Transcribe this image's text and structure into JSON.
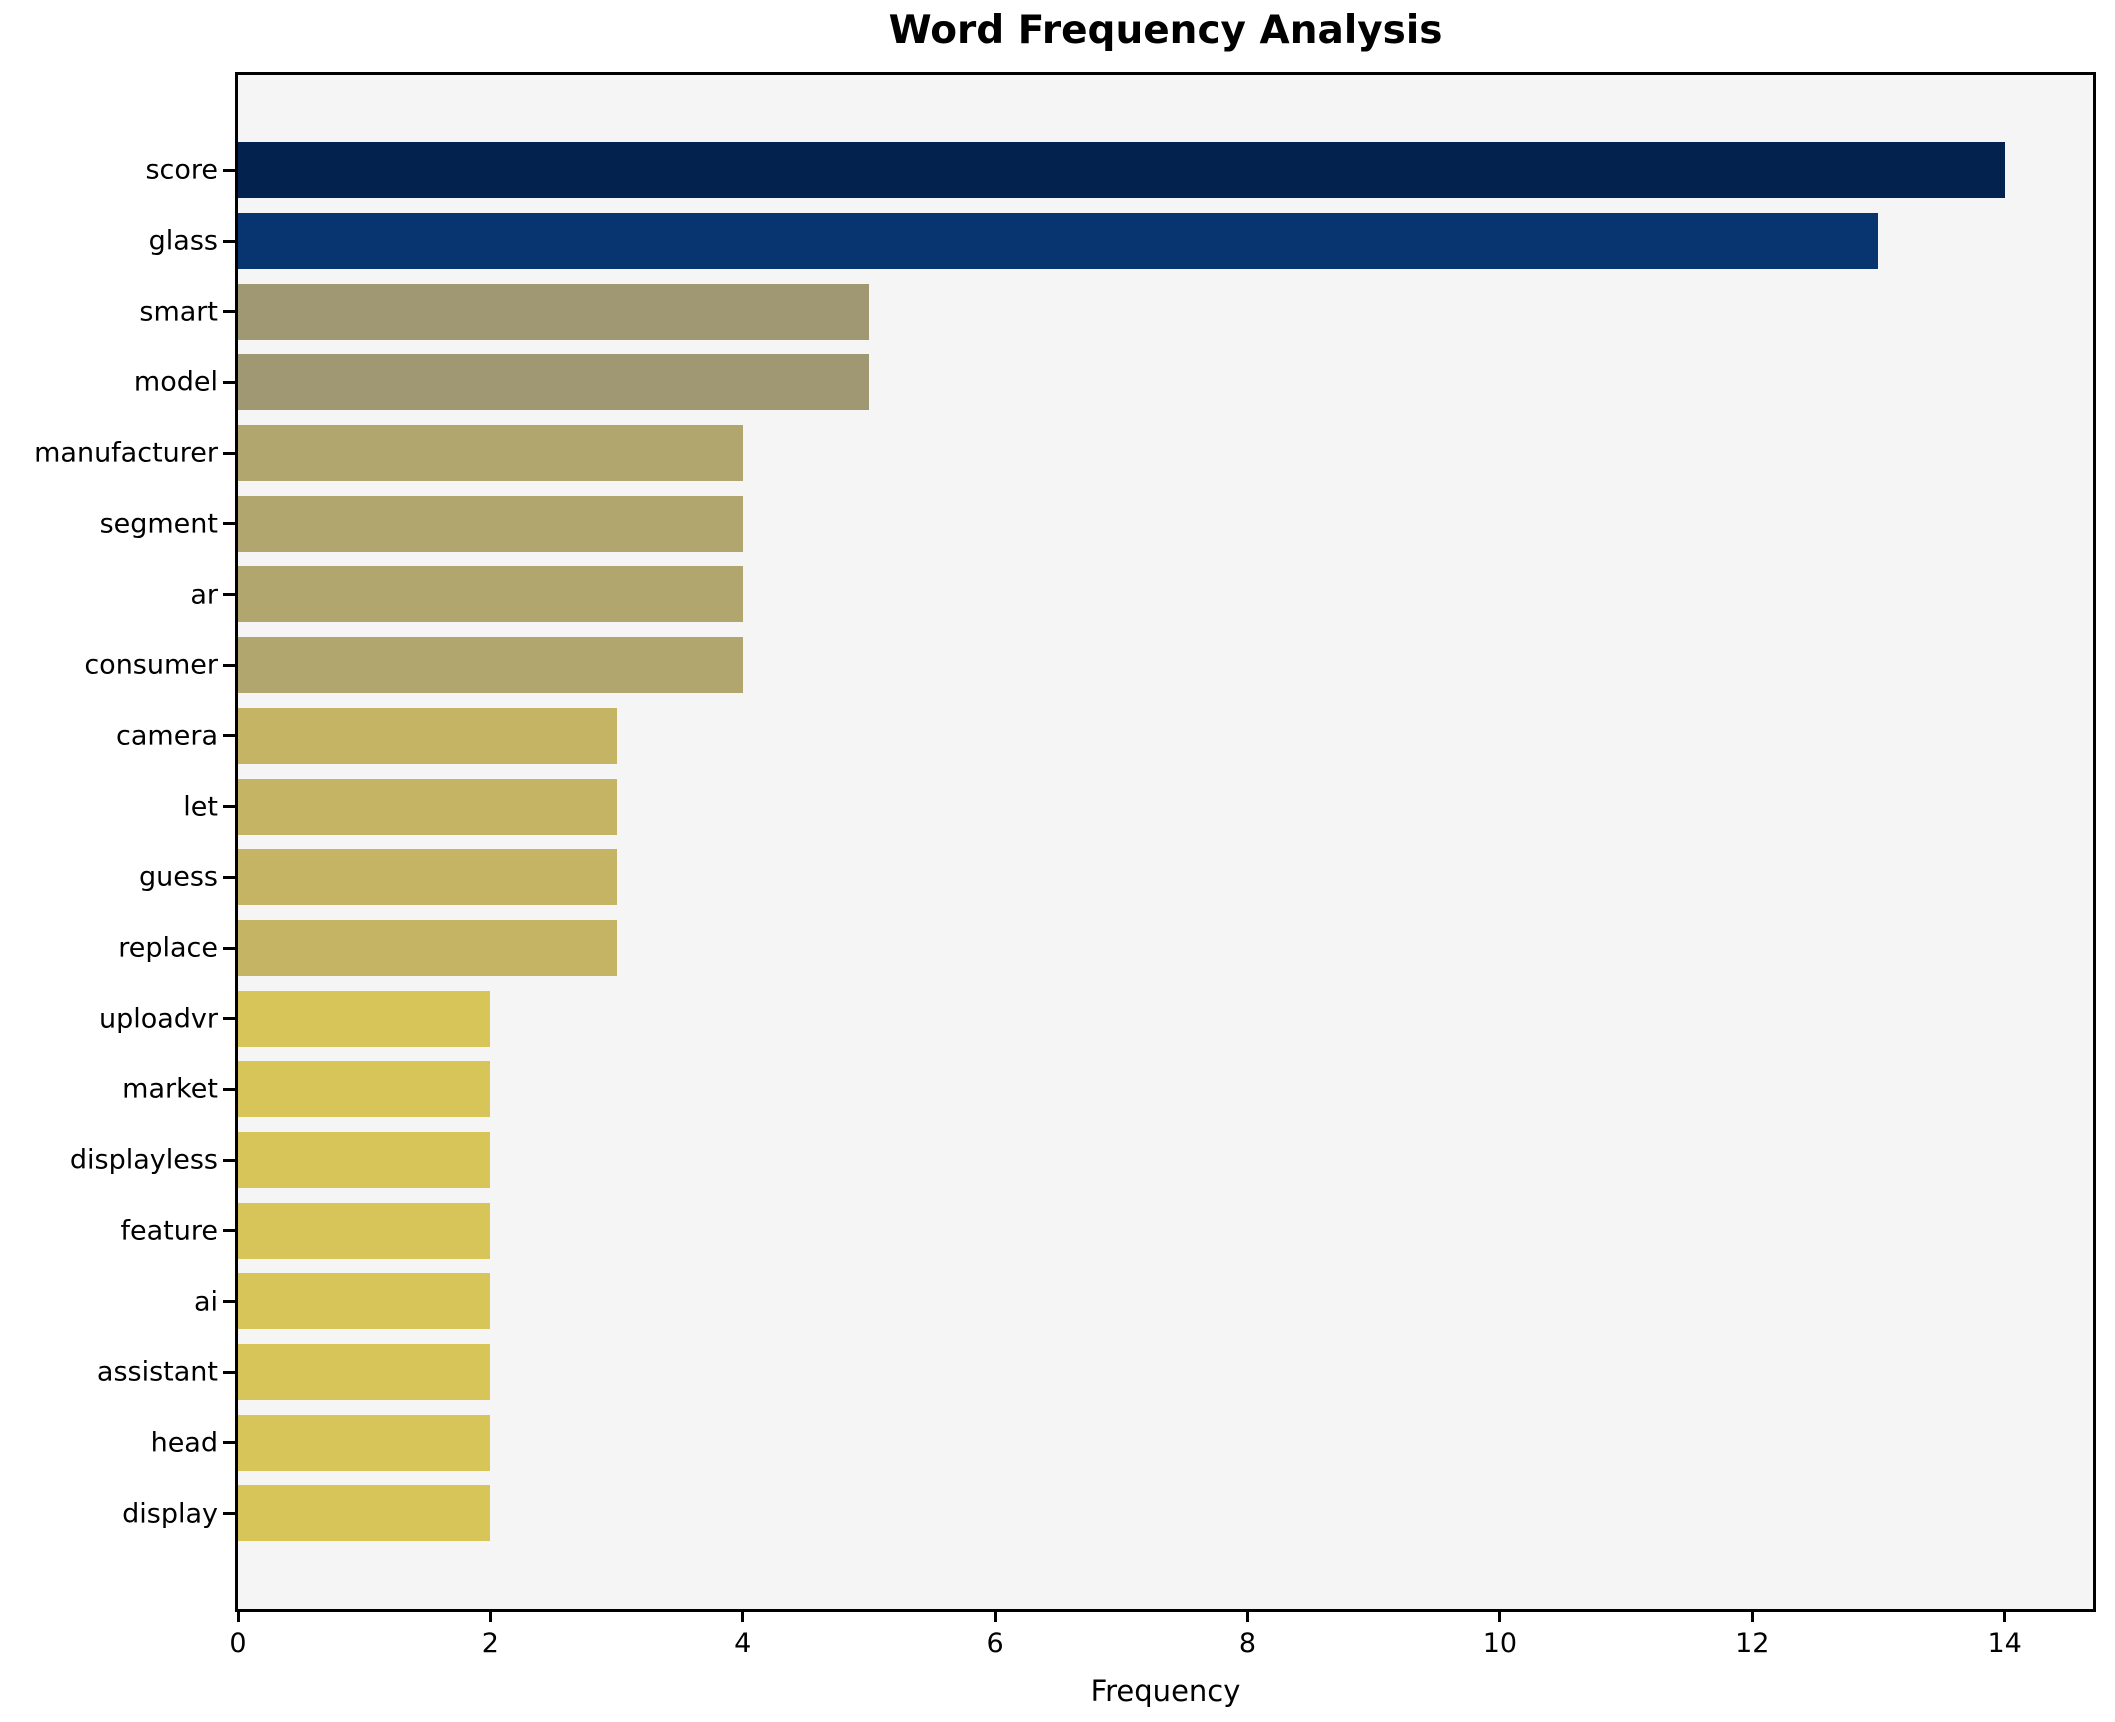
{
  "chart_data": {
    "type": "bar",
    "orientation": "horizontal",
    "title": "Word Frequency Analysis",
    "xlabel": "Frequency",
    "ylabel": "",
    "categories": [
      "score",
      "glass",
      "smart",
      "model",
      "manufacturer",
      "segment",
      "ar",
      "consumer",
      "camera",
      "let",
      "guess",
      "replace",
      "uploadvr",
      "market",
      "displayless",
      "feature",
      "ai",
      "assistant",
      "head",
      "display"
    ],
    "values": [
      14,
      13,
      5,
      5,
      4,
      4,
      4,
      4,
      3,
      3,
      3,
      3,
      2,
      2,
      2,
      2,
      2,
      2,
      2,
      2
    ],
    "bar_colors": [
      "#03224e",
      "#083570",
      "#a09873",
      "#a09873",
      "#b1a66e",
      "#b1a66e",
      "#b1a66e",
      "#b1a66e",
      "#c5b464",
      "#c5b464",
      "#c5b464",
      "#c5b464",
      "#d8c55a",
      "#d8c55a",
      "#d8c55a",
      "#d8c55a",
      "#d8c55a",
      "#d8c55a",
      "#d8c55a",
      "#d8c55a"
    ],
    "xlim": [
      0,
      14.7
    ],
    "x_ticks": [
      0,
      2,
      4,
      6,
      8,
      10,
      12,
      14
    ],
    "grid": false,
    "legend": false,
    "plot_bg": "#f6f5f6",
    "figure_bg": "#ffffff",
    "spine_color": "#000000",
    "text_color": "#000000"
  }
}
